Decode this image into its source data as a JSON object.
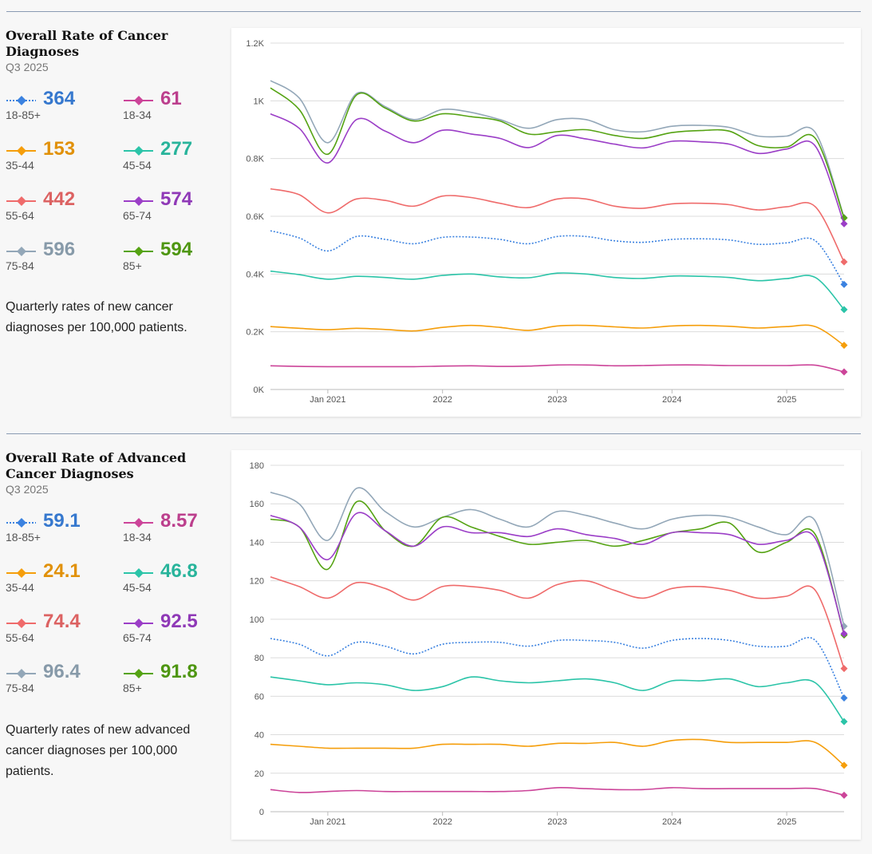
{
  "colors": {
    "18-85+": "#3b82e0",
    "18-34": "#cc4499",
    "35-44": "#f59e0b",
    "45-54": "#2bc4a8",
    "55-64": "#ef6b6b",
    "65-74": "#9b3ec7",
    "75-84": "#93a7b8",
    "85+": "#55a313"
  },
  "sections": [
    {
      "title": "Overall Rate of Cancer Diagnoses",
      "period": "Q3 2025",
      "description": "Quarterly rates of new cancer diagnoses per 100,000 patients.",
      "stats": [
        {
          "value": "364",
          "label": "18-85+",
          "series": "18-85+",
          "dotted": true
        },
        {
          "value": "61",
          "label": "18-34",
          "series": "18-34"
        },
        {
          "value": "153",
          "label": "35-44",
          "series": "35-44"
        },
        {
          "value": "277",
          "label": "45-54",
          "series": "45-54"
        },
        {
          "value": "442",
          "label": "55-64",
          "series": "55-64"
        },
        {
          "value": "574",
          "label": "65-74",
          "series": "65-74"
        },
        {
          "value": "596",
          "label": "75-84",
          "series": "75-84"
        },
        {
          "value": "594",
          "label": "85+",
          "series": "85+"
        }
      ]
    },
    {
      "title": "Overall Rate of Advanced Cancer Diagnoses",
      "period": "Q3 2025",
      "description": "Quarterly rates of new advanced cancer diagnoses per 100,000 patients.",
      "stats": [
        {
          "value": "59.1",
          "label": "18-85+",
          "series": "18-85+",
          "dotted": true
        },
        {
          "value": "8.57",
          "label": "18-34",
          "series": "18-34"
        },
        {
          "value": "24.1",
          "label": "35-44",
          "series": "35-44"
        },
        {
          "value": "46.8",
          "label": "45-54",
          "series": "45-54"
        },
        {
          "value": "74.4",
          "label": "55-64",
          "series": "55-64"
        },
        {
          "value": "92.5",
          "label": "65-74",
          "series": "65-74"
        },
        {
          "value": "96.4",
          "label": "75-84",
          "series": "75-84"
        },
        {
          "value": "91.8",
          "label": "85+",
          "series": "85+"
        }
      ]
    }
  ],
  "chart_data": [
    {
      "type": "line",
      "title": "Overall Rate of Cancer Diagnoses",
      "x": [
        2020.5,
        2020.75,
        2021.0,
        2021.25,
        2021.5,
        2021.75,
        2022.0,
        2022.25,
        2022.5,
        2022.75,
        2023.0,
        2023.25,
        2023.5,
        2023.75,
        2024.0,
        2024.25,
        2024.5,
        2024.75,
        2025.0,
        2025.25,
        2025.5
      ],
      "xlim": [
        2020.5,
        2025.5
      ],
      "x_ticks": [
        2021.0,
        2022.0,
        2023.0,
        2024.0,
        2025.0
      ],
      "x_tick_labels": [
        "Jan 2021",
        "2022",
        "2023",
        "2024",
        "2025"
      ],
      "ylim": [
        0,
        1200
      ],
      "y_ticks": [
        0,
        200,
        400,
        600,
        800,
        1000,
        1200
      ],
      "y_tick_labels": [
        "0K",
        "0.2K",
        "0.4K",
        "0.6K",
        "0.8K",
        "1K",
        "1.2K"
      ],
      "series": [
        {
          "name": "75-84",
          "values": [
            1070,
            1010,
            855,
            1025,
            980,
            935,
            970,
            960,
            935,
            905,
            935,
            935,
            900,
            893,
            912,
            915,
            908,
            878,
            878,
            890,
            596
          ]
        },
        {
          "name": "85+",
          "values": [
            1045,
            970,
            815,
            1020,
            975,
            930,
            955,
            945,
            930,
            885,
            893,
            900,
            880,
            870,
            890,
            897,
            895,
            845,
            840,
            870,
            594
          ]
        },
        {
          "name": "65-74",
          "values": [
            955,
            905,
            785,
            935,
            895,
            855,
            898,
            885,
            870,
            838,
            880,
            868,
            850,
            837,
            860,
            858,
            850,
            818,
            833,
            843,
            574
          ]
        },
        {
          "name": "55-64",
          "values": [
            695,
            675,
            612,
            660,
            655,
            635,
            670,
            665,
            645,
            630,
            660,
            660,
            635,
            628,
            643,
            645,
            640,
            622,
            633,
            633,
            442
          ]
        },
        {
          "name": "18-85+",
          "dotted": true,
          "values": [
            550,
            525,
            480,
            530,
            520,
            505,
            527,
            528,
            520,
            505,
            530,
            530,
            515,
            510,
            520,
            522,
            518,
            503,
            508,
            515,
            364
          ]
        },
        {
          "name": "45-54",
          "values": [
            410,
            398,
            382,
            392,
            388,
            382,
            395,
            400,
            390,
            387,
            403,
            400,
            388,
            385,
            393,
            392,
            388,
            377,
            384,
            388,
            277
          ]
        },
        {
          "name": "35-44",
          "values": [
            218,
            212,
            207,
            212,
            208,
            203,
            215,
            222,
            215,
            205,
            220,
            222,
            217,
            213,
            220,
            222,
            219,
            213,
            218,
            218,
            153
          ]
        },
        {
          "name": "18-34",
          "values": [
            82,
            80,
            79,
            79,
            79,
            79,
            81,
            82,
            80,
            81,
            85,
            85,
            82,
            83,
            85,
            85,
            83,
            83,
            83,
            84,
            61
          ]
        }
      ]
    },
    {
      "type": "line",
      "title": "Overall Rate of Advanced Cancer Diagnoses",
      "x": [
        2020.5,
        2020.75,
        2021.0,
        2021.25,
        2021.5,
        2021.75,
        2022.0,
        2022.25,
        2022.5,
        2022.75,
        2023.0,
        2023.25,
        2023.5,
        2023.75,
        2024.0,
        2024.25,
        2024.5,
        2024.75,
        2025.0,
        2025.25,
        2025.5
      ],
      "xlim": [
        2020.5,
        2025.5
      ],
      "x_ticks": [
        2021.0,
        2022.0,
        2023.0,
        2024.0,
        2025.0
      ],
      "x_tick_labels": [
        "Jan 2021",
        "2022",
        "2023",
        "2024",
        "2025"
      ],
      "ylim": [
        0,
        180
      ],
      "y_ticks": [
        0,
        20,
        40,
        60,
        80,
        100,
        120,
        140,
        160,
        180
      ],
      "y_tick_labels": [
        "0",
        "20",
        "40",
        "60",
        "80",
        "100",
        "120",
        "140",
        "160",
        "180"
      ],
      "series": [
        {
          "name": "75-84",
          "values": [
            166,
            160,
            141,
            168,
            156,
            148,
            153,
            157,
            152,
            148,
            156,
            154,
            150,
            147,
            152,
            154,
            153,
            148,
            144,
            151,
            96.4
          ]
        },
        {
          "name": "85+",
          "values": [
            152,
            148,
            126,
            161,
            146,
            138,
            153,
            148,
            143,
            139,
            140,
            141,
            138,
            141,
            145,
            147,
            150,
            135,
            140,
            144,
            91.8
          ]
        },
        {
          "name": "65-74",
          "values": [
            154,
            148,
            131,
            155,
            146,
            138,
            148,
            145,
            145,
            143,
            147,
            144,
            142,
            139,
            145,
            145,
            144,
            139,
            141,
            142,
            92.5
          ]
        },
        {
          "name": "55-64",
          "values": [
            122,
            117,
            111,
            119,
            116,
            110,
            117,
            117,
            115,
            111,
            118,
            120,
            115,
            111,
            116,
            117,
            115,
            111,
            112,
            115,
            74.4
          ]
        },
        {
          "name": "18-85+",
          "dotted": true,
          "values": [
            90,
            87,
            81,
            88,
            86,
            82,
            87,
            88,
            88,
            86,
            89,
            89,
            88,
            85,
            89,
            90,
            89,
            86,
            86,
            89,
            59.1
          ]
        },
        {
          "name": "45-54",
          "values": [
            70,
            68,
            66,
            67,
            66,
            63,
            65,
            70,
            68,
            67,
            68,
            69,
            67,
            63,
            68,
            68,
            69,
            65,
            67,
            67,
            46.8
          ]
        },
        {
          "name": "35-44",
          "values": [
            35,
            34,
            33,
            33,
            33,
            33,
            35,
            35,
            35,
            34,
            35.5,
            35.5,
            36,
            34,
            37,
            37.5,
            36,
            36,
            36,
            36,
            24.1
          ]
        },
        {
          "name": "18-34",
          "values": [
            11.5,
            10,
            10.5,
            11,
            10.5,
            10.5,
            10.5,
            10.5,
            10.5,
            11,
            12.5,
            12,
            11.5,
            11.5,
            12.5,
            12,
            12,
            12,
            12,
            12,
            8.57
          ]
        }
      ]
    }
  ]
}
